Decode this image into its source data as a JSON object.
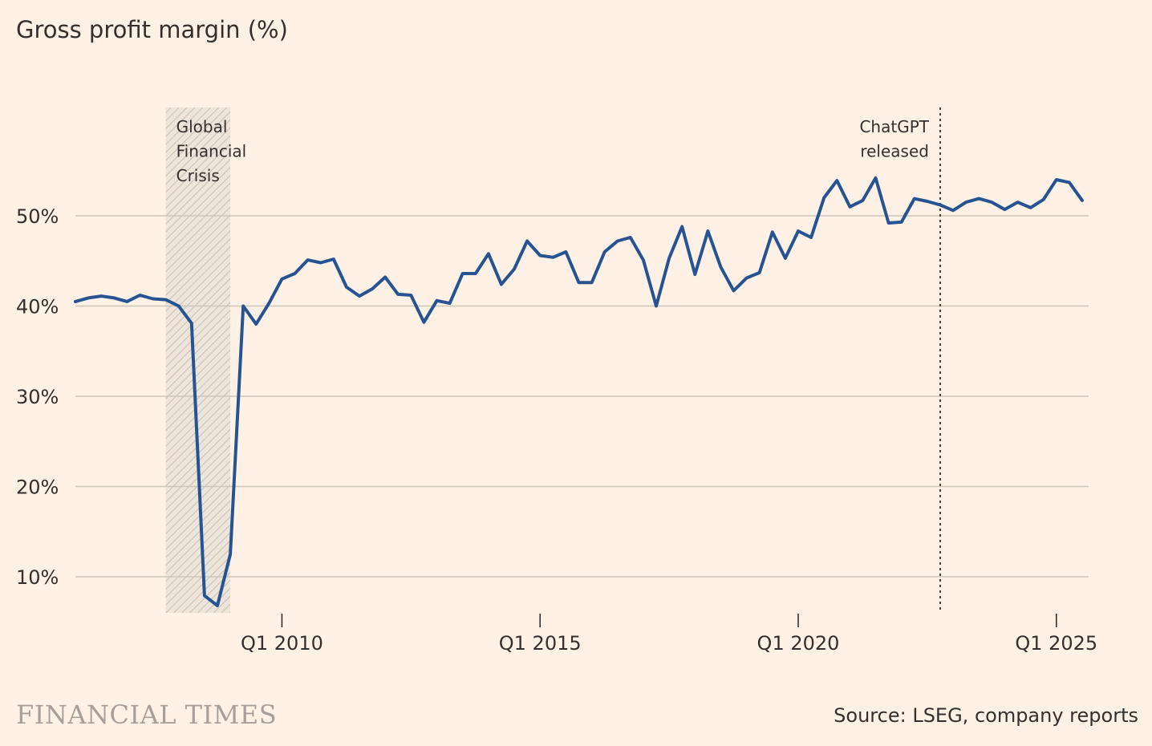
{
  "colors": {
    "background": "#FFF1E5",
    "line": "#265493",
    "grid": "#CEC6B9",
    "text": "#33302E",
    "shade": "#BEB6AD",
    "brand": "#A7A09A"
  },
  "footer": {
    "brand": "FINANCIAL TIMES",
    "source": "Source: LSEG, company reports"
  },
  "chart_data": {
    "type": "line",
    "title": "Gross profit margin (%)",
    "xlabel": "",
    "ylabel": "",
    "x_unit": "quarter",
    "xlim": [
      2006.0,
      2025.625
    ],
    "ylim": [
      6,
      60
    ],
    "y_ticks": [
      {
        "value": 10,
        "label": "10%"
      },
      {
        "value": 20,
        "label": "20%"
      },
      {
        "value": 30,
        "label": "30%"
      },
      {
        "value": 40,
        "label": "40%"
      },
      {
        "value": 50,
        "label": "50%"
      }
    ],
    "x_ticks": [
      {
        "value": 2010,
        "label": "Q1 2010"
      },
      {
        "value": 2015,
        "label": "Q1 2015"
      },
      {
        "value": 2020,
        "label": "Q1 2020"
      },
      {
        "value": 2025,
        "label": "Q1 2025"
      }
    ],
    "grid": true,
    "annotations": [
      {
        "type": "shaded_range",
        "x_start": 2007.75,
        "x_end": 2009.0,
        "lines": [
          "Global",
          "Financial",
          "Crisis"
        ]
      },
      {
        "type": "vertical_line",
        "x": 2022.75,
        "lines": [
          "ChatGPT",
          "released"
        ]
      }
    ],
    "series": [
      {
        "name": "Gross profit margin",
        "x": [
          2006.0,
          2006.25,
          2006.5,
          2006.75,
          2007.0,
          2007.25,
          2007.5,
          2007.75,
          2008.0,
          2008.25,
          2008.5,
          2008.75,
          2009.0,
          2009.25,
          2009.5,
          2009.75,
          2010.0,
          2010.25,
          2010.5,
          2010.75,
          2011.0,
          2011.25,
          2011.5,
          2011.75,
          2012.0,
          2012.25,
          2012.5,
          2012.75,
          2013.0,
          2013.25,
          2013.5,
          2013.75,
          2014.0,
          2014.25,
          2014.5,
          2014.75,
          2015.0,
          2015.25,
          2015.5,
          2015.75,
          2016.0,
          2016.25,
          2016.5,
          2016.75,
          2017.0,
          2017.25,
          2017.5,
          2017.75,
          2018.0,
          2018.25,
          2018.5,
          2018.75,
          2019.0,
          2019.25,
          2019.5,
          2019.75,
          2020.0,
          2020.25,
          2020.5,
          2020.75,
          2021.0,
          2021.25,
          2021.5,
          2021.75,
          2022.0,
          2022.25,
          2022.5,
          2022.75,
          2023.0,
          2023.25,
          2023.5,
          2023.75,
          2024.0,
          2024.25,
          2024.5,
          2024.75,
          2025.0,
          2025.25,
          2025.5
        ],
        "values": [
          40.5,
          40.9,
          41.1,
          40.9,
          40.5,
          41.2,
          40.8,
          40.7,
          40.0,
          38.1,
          7.9,
          6.8,
          12.5,
          40.0,
          38.0,
          40.3,
          43.0,
          43.6,
          45.1,
          44.8,
          45.2,
          42.1,
          41.1,
          41.9,
          43.2,
          41.3,
          41.2,
          38.2,
          40.6,
          40.3,
          43.6,
          43.6,
          45.8,
          42.4,
          44.1,
          47.2,
          45.6,
          45.4,
          46.0,
          42.6,
          42.6,
          46.0,
          47.2,
          47.6,
          45.1,
          40.0,
          45.3,
          48.8,
          43.5,
          48.3,
          44.3,
          41.7,
          43.1,
          43.7,
          48.2,
          45.3,
          48.3,
          47.6,
          52.0,
          53.9,
          51.0,
          51.7,
          54.2,
          49.2,
          49.3,
          51.9,
          51.6,
          51.2,
          50.6,
          51.5,
          51.9,
          51.5,
          50.7,
          51.5,
          50.9,
          51.8,
          54.0,
          53.7,
          51.7
        ]
      }
    ]
  }
}
